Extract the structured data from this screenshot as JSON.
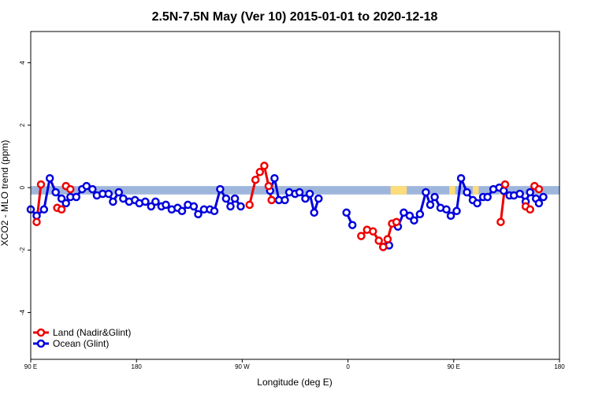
{
  "chart_data": {
    "type": "line",
    "title": "2.5N-7.5N May (Ver 10)   2015-01-01 to 2020-12-18",
    "xlabel": "Longitude (deg E)",
    "ylabel": "XCO2 - MLO trend (ppm)",
    "xlim": [
      -90,
      270
    ],
    "ylim": [
      -5.5,
      5
    ],
    "x_ticks": [
      {
        "value": -90,
        "label": "90 E"
      },
      {
        "value": -18,
        "label": "180"
      },
      {
        "value": 54,
        "label": "90 W"
      },
      {
        "value": 126,
        "label": "0"
      },
      {
        "value": 198,
        "label": "90 E"
      },
      {
        "value": 270,
        "label": "180"
      }
    ],
    "y_ticks": [
      {
        "value": -4,
        "label": "-4"
      },
      {
        "value": -2,
        "label": "-2"
      },
      {
        "value": 0,
        "label": "0"
      },
      {
        "value": 2,
        "label": "2"
      },
      {
        "value": 4,
        "label": "4"
      }
    ],
    "legend": {
      "placement": "bottom-left"
    },
    "colors": {
      "land": "#ee0000",
      "ocean": "#0000dd",
      "ocean_band": "#9fb6dc",
      "land_band": "#fddc7a"
    },
    "land_band_segments": [
      {
        "from": 155,
        "to": 166
      },
      {
        "from": 195,
        "to": 199
      },
      {
        "from": 211,
        "to": 215
      },
      {
        "from": 229,
        "to": 231
      }
    ],
    "series": [
      {
        "name": "Land (Nadir&Glint)",
        "key": "land",
        "segments": [
          [
            [
              -86,
              -1.1
            ],
            [
              -83,
              0.1
            ]
          ],
          [
            [
              -72,
              -0.65
            ],
            [
              -69,
              -0.7
            ]
          ],
          [
            [
              -66,
              0.05
            ],
            [
              -63,
              -0.05
            ]
          ],
          [
            [
              59,
              -0.55
            ],
            [
              63,
              0.25
            ],
            [
              66,
              0.5
            ],
            [
              69,
              0.7
            ],
            [
              72,
              0.05
            ],
            [
              74,
              -0.4
            ]
          ],
          [
            [
              135,
              -1.55
            ],
            [
              139,
              -1.35
            ],
            [
              143,
              -1.4
            ],
            [
              147,
              -1.7
            ],
            [
              150,
              -1.9
            ],
            [
              153,
              -1.65
            ],
            [
              156,
              -1.15
            ],
            [
              159,
              -1.1
            ]
          ],
          [
            [
              230,
              -1.1
            ],
            [
              233,
              0.1
            ]
          ],
          [
            [
              247,
              -0.6
            ],
            [
              250,
              -0.7
            ]
          ],
          [
            [
              253,
              0.05
            ],
            [
              256,
              -0.05
            ]
          ]
        ]
      },
      {
        "name": "Ocean (Glint)",
        "key": "ocean",
        "segments": [
          [
            [
              -90,
              -0.7
            ],
            [
              -86,
              -0.9
            ],
            [
              -81,
              -0.7
            ],
            [
              -77,
              0.3
            ],
            [
              -73,
              -0.15
            ],
            [
              -69,
              -0.35
            ],
            [
              -66,
              -0.5
            ],
            [
              -63,
              -0.3
            ],
            [
              -59,
              -0.3
            ],
            [
              -55,
              -0.05
            ],
            [
              -52,
              0.05
            ],
            [
              -48,
              -0.05
            ],
            [
              -45,
              -0.25
            ],
            [
              -41,
              -0.2
            ],
            [
              -37,
              -0.2
            ],
            [
              -34,
              -0.45
            ],
            [
              -30,
              -0.15
            ],
            [
              -27,
              -0.35
            ],
            [
              -23,
              -0.45
            ],
            [
              -19,
              -0.4
            ],
            [
              -16,
              -0.5
            ],
            [
              -12,
              -0.45
            ],
            [
              -8,
              -0.6
            ],
            [
              -5,
              -0.45
            ],
            [
              -1,
              -0.6
            ],
            [
              2,
              -0.55
            ],
            [
              6,
              -0.7
            ],
            [
              10,
              -0.65
            ],
            [
              13,
              -0.75
            ],
            [
              17,
              -0.55
            ],
            [
              21,
              -0.6
            ],
            [
              24,
              -0.85
            ],
            [
              28,
              -0.7
            ],
            [
              32,
              -0.7
            ],
            [
              35,
              -0.75
            ],
            [
              39,
              -0.05
            ],
            [
              43,
              -0.35
            ],
            [
              46,
              -0.6
            ],
            [
              49,
              -0.35
            ],
            [
              53,
              -0.6
            ]
          ],
          [
            [
              73,
              -0.1
            ],
            [
              76,
              0.3
            ],
            [
              79,
              -0.4
            ],
            [
              83,
              -0.4
            ],
            [
              86,
              -0.15
            ],
            [
              90,
              -0.2
            ],
            [
              93,
              -0.15
            ],
            [
              97,
              -0.35
            ],
            [
              100,
              -0.2
            ],
            [
              103,
              -0.8
            ],
            [
              106,
              -0.35
            ]
          ],
          [
            [
              125,
              -0.8
            ],
            [
              129,
              -1.2
            ]
          ],
          [
            [
              150,
              -1.9
            ],
            [
              154,
              -1.85
            ]
          ],
          [
            [
              160,
              -1.25
            ],
            [
              164,
              -0.8
            ],
            [
              168,
              -0.9
            ],
            [
              171,
              -1.05
            ],
            [
              175,
              -0.85
            ],
            [
              179,
              -0.15
            ],
            [
              182,
              -0.55
            ],
            [
              185,
              -0.3
            ],
            [
              189,
              -0.65
            ],
            [
              193,
              -0.7
            ],
            [
              196,
              -0.9
            ],
            [
              200,
              -0.75
            ],
            [
              203,
              0.3
            ],
            [
              207,
              -0.15
            ],
            [
              211,
              -0.4
            ],
            [
              214,
              -0.5
            ],
            [
              218,
              -0.3
            ],
            [
              221,
              -0.3
            ],
            [
              225,
              -0.05
            ],
            [
              229,
              0.0
            ],
            [
              232,
              -0.1
            ],
            [
              236,
              -0.25
            ],
            [
              239,
              -0.25
            ],
            [
              243,
              -0.2
            ],
            [
              247,
              -0.45
            ],
            [
              250,
              -0.15
            ],
            [
              254,
              -0.35
            ]
          ],
          [
            [
              256,
              -0.5
            ],
            [
              259,
              -0.3
            ]
          ]
        ]
      }
    ]
  }
}
